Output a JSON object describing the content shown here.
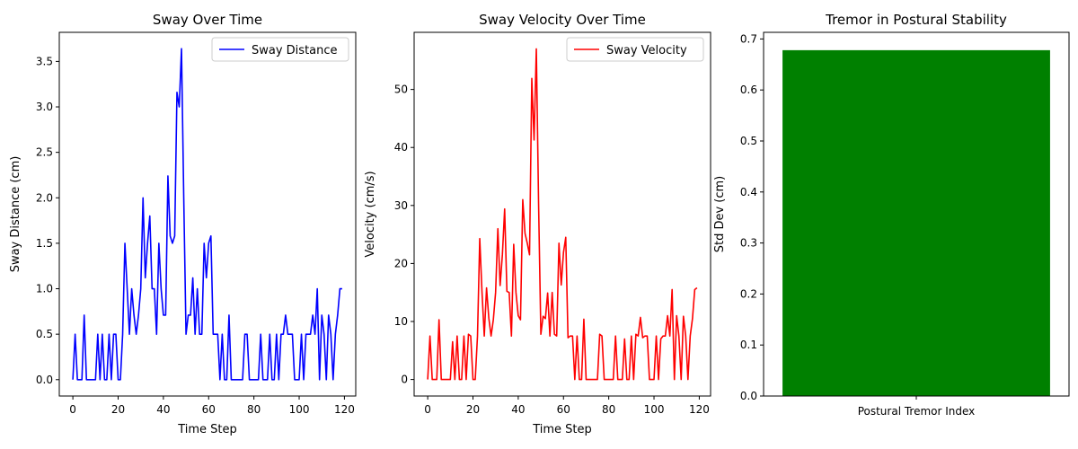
{
  "chart_data": [
    {
      "type": "line",
      "title": "Sway Over Time",
      "xlabel": "Time Step",
      "ylabel": "Sway Distance (cm)",
      "xlim": [
        -6,
        125
      ],
      "ylim": [
        -0.18,
        3.82
      ],
      "xticks": [
        0,
        20,
        40,
        60,
        80,
        100,
        120
      ],
      "yticks": [
        0.0,
        0.5,
        1.0,
        1.5,
        2.0,
        2.5,
        3.0,
        3.5
      ],
      "ytick_labels": [
        "0.0",
        "0.5",
        "1.0",
        "1.5",
        "2.0",
        "2.5",
        "3.0",
        "3.5"
      ],
      "legend": "top-right",
      "series": [
        {
          "name": "Sway Distance",
          "color": "#0000ff",
          "y": [
            0,
            0.5,
            0,
            0,
            0,
            0.71,
            0,
            0,
            0,
            0,
            0,
            0.5,
            0,
            0.5,
            0,
            0,
            0.5,
            0,
            0.5,
            0.5,
            0,
            0,
            0.5,
            1.5,
            1.0,
            0.5,
            1.0,
            0.71,
            0.5,
            0.71,
            1.0,
            2.0,
            1.12,
            1.5,
            1.8,
            1.0,
            1.0,
            0.5,
            1.5,
            1.0,
            0.71,
            0.71,
            2.24,
            1.58,
            1.5,
            1.58,
            3.16,
            3.0,
            3.64,
            2.0,
            0.5,
            0.71,
            0.71,
            1.12,
            0.5,
            1.0,
            0.5,
            0.5,
            1.5,
            1.12,
            1.5,
            1.58,
            0.5,
            0.5,
            0.5,
            0,
            0.5,
            0,
            0,
            0.71,
            0,
            0,
            0,
            0,
            0,
            0,
            0.5,
            0.5,
            0,
            0,
            0,
            0,
            0,
            0.5,
            0,
            0,
            0,
            0.5,
            0,
            0,
            0.5,
            0,
            0.5,
            0.5,
            0.71,
            0.5,
            0.5,
            0.5,
            0,
            0,
            0,
            0.5,
            0,
            0.5,
            0.5,
            0.5,
            0.71,
            0.5,
            1.0,
            0,
            0.71,
            0.5,
            0,
            0.71,
            0.5,
            0,
            0.5,
            0.71,
            1.0,
            1.0
          ]
        }
      ]
    },
    {
      "type": "line",
      "title": "Sway Velocity Over Time",
      "xlabel": "Time Step",
      "ylabel": "Velocity (cm/s)",
      "xlim": [
        -6,
        125
      ],
      "ylim": [
        -2.85,
        59.85
      ],
      "xticks": [
        0,
        20,
        40,
        60,
        80,
        100,
        120
      ],
      "yticks": [
        0,
        10,
        20,
        30,
        40,
        50
      ],
      "ytick_labels": [
        "0",
        "10",
        "20",
        "30",
        "40",
        "50"
      ],
      "legend": "top-right",
      "series": [
        {
          "name": "Sway Velocity",
          "color": "#ff0000",
          "y": [
            0,
            7.5,
            0,
            0,
            0,
            10.3,
            0,
            0,
            0,
            0,
            0,
            6.5,
            0,
            7.5,
            0,
            0,
            7.5,
            0,
            7.8,
            7.5,
            0,
            0,
            7.5,
            24.3,
            15.0,
            7.5,
            15.8,
            10.6,
            7.5,
            10.3,
            15.0,
            26.0,
            16.2,
            21.5,
            29.4,
            15.2,
            15.0,
            7.5,
            23.3,
            15.0,
            11.0,
            10.3,
            31.0,
            25.2,
            23.5,
            21.5,
            51.9,
            41.3,
            57.0,
            30.2,
            7.8,
            10.9,
            10.5,
            14.9,
            7.5,
            15.0,
            7.8,
            7.5,
            23.5,
            16.3,
            21.9,
            24.5,
            7.2,
            7.5,
            7.5,
            0,
            7.5,
            0,
            0,
            10.4,
            0,
            0,
            0,
            0,
            0,
            0,
            7.8,
            7.5,
            0,
            0,
            0,
            0,
            0,
            7.5,
            0,
            0,
            0,
            7.0,
            0,
            0,
            7.5,
            0,
            7.8,
            7.5,
            10.7,
            7.2,
            7.5,
            7.5,
            0,
            0,
            0,
            7.5,
            0,
            7.0,
            7.5,
            7.5,
            11.0,
            7.5,
            15.5,
            0,
            11.0,
            7.5,
            0,
            10.9,
            7.5,
            0,
            7.5,
            10.5,
            15.5,
            15.8
          ]
        }
      ]
    },
    {
      "type": "bar",
      "title": "Tremor in Postural Stability",
      "xlabel": "",
      "ylabel": "Std Dev (cm)",
      "ylim": [
        0,
        0.713
      ],
      "yticks": [
        0.0,
        0.1,
        0.2,
        0.3,
        0.4,
        0.5,
        0.6,
        0.7
      ],
      "ytick_labels": [
        "0.0",
        "0.1",
        "0.2",
        "0.3",
        "0.4",
        "0.5",
        "0.6",
        "0.7"
      ],
      "categories": [
        "Postural Tremor Index"
      ],
      "values": [
        0.678
      ],
      "color": "#008000"
    }
  ]
}
